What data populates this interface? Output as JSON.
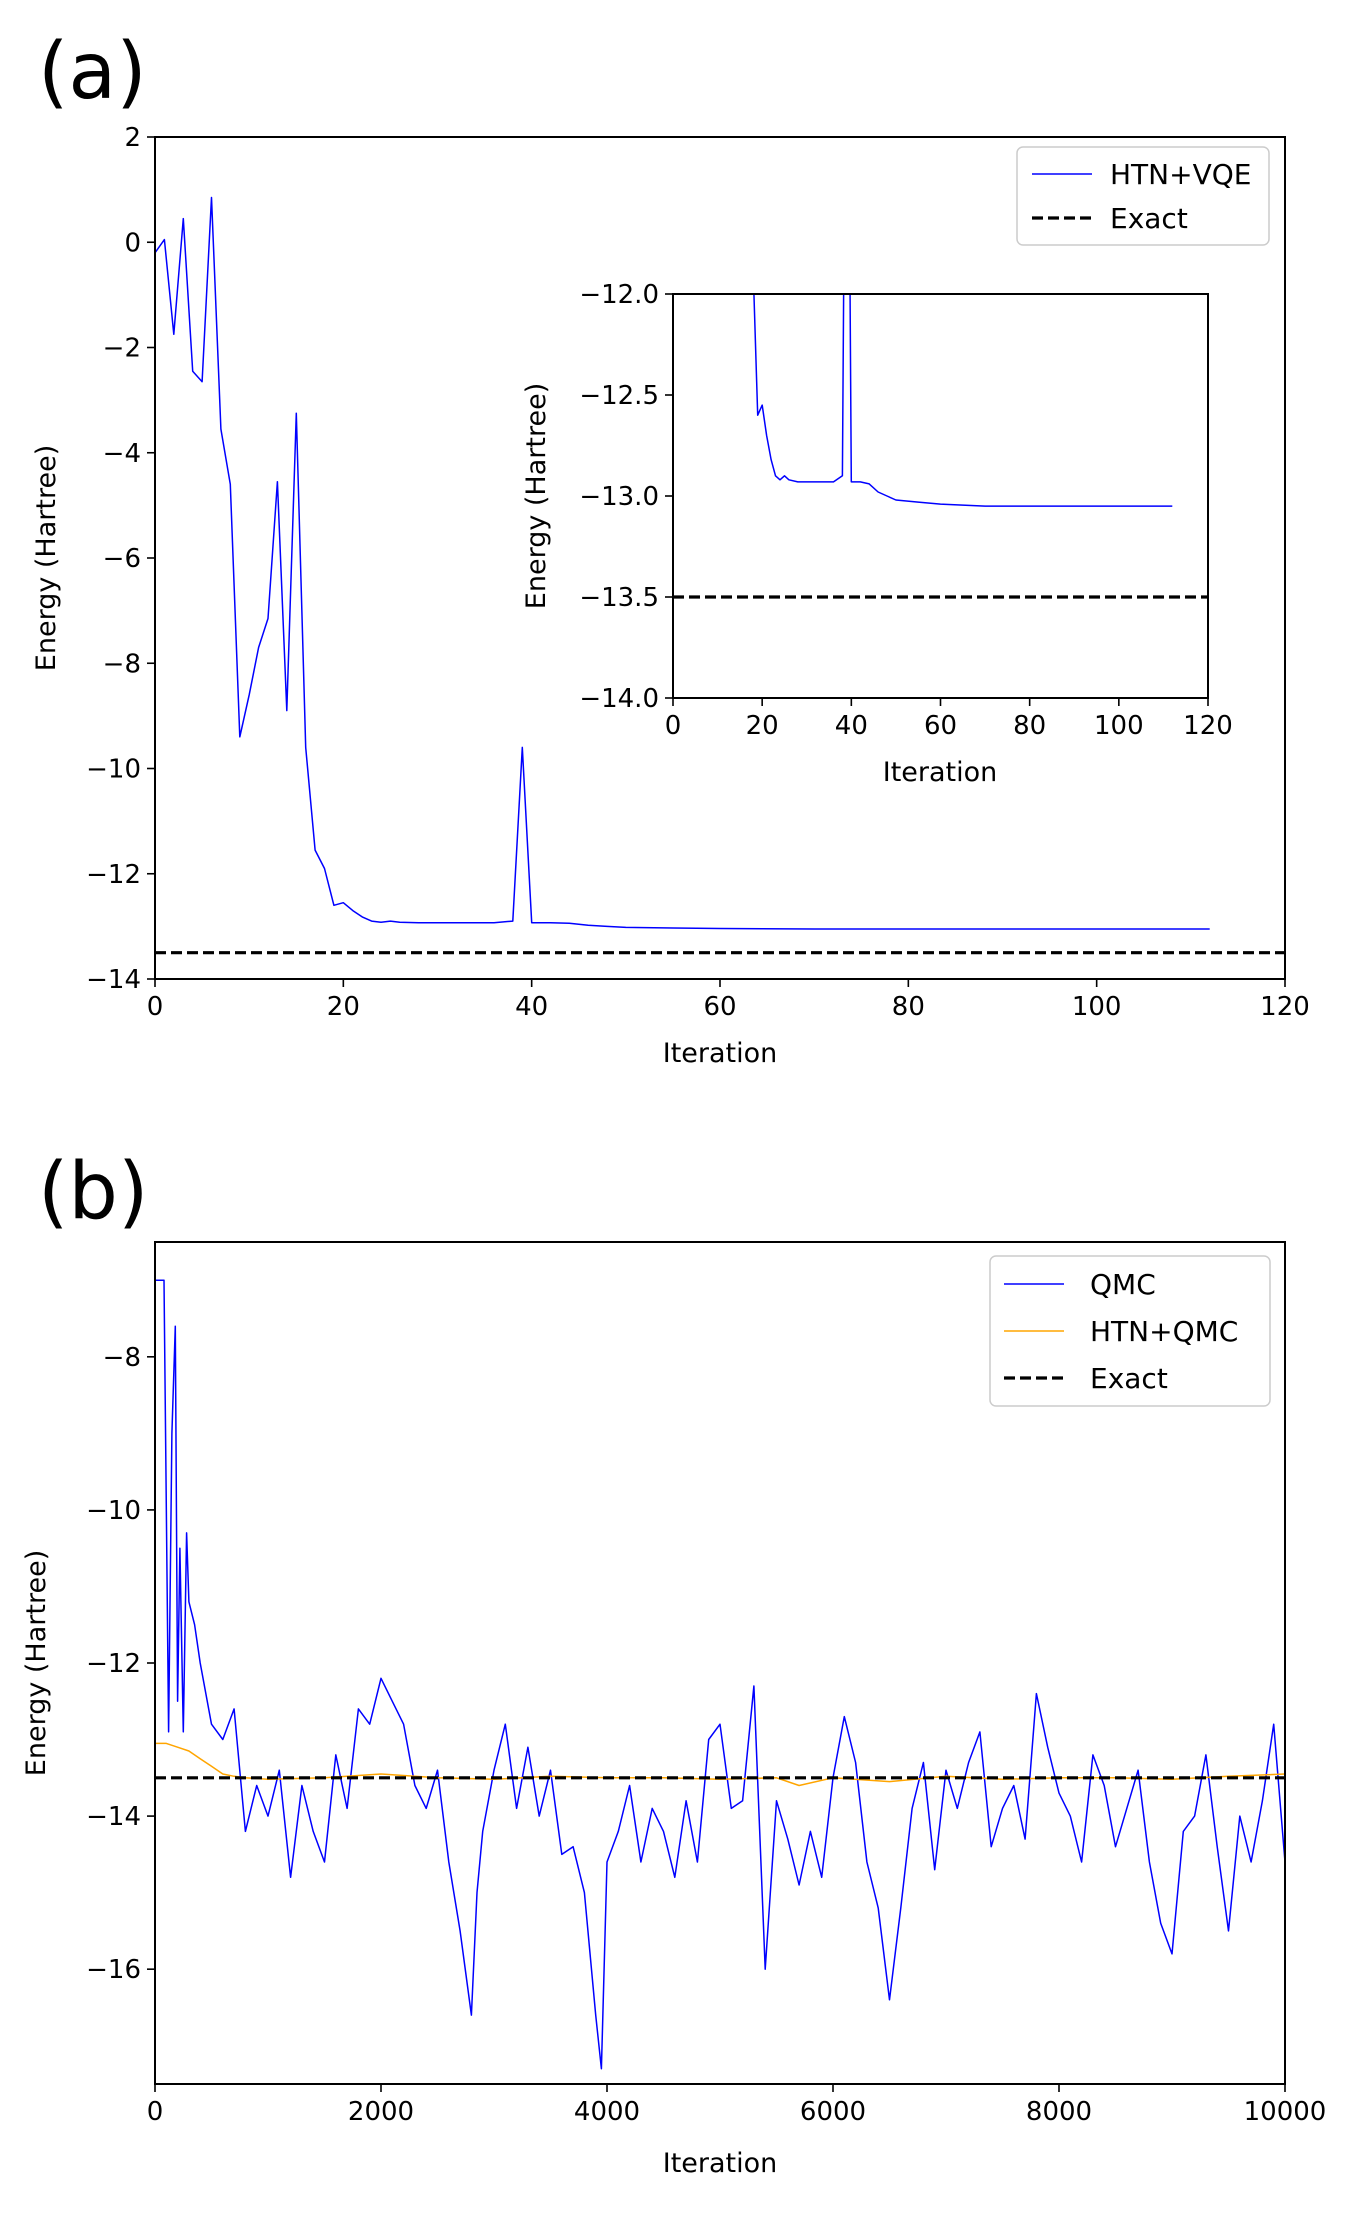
{
  "chart_data": [
    {
      "panel_label": "(a)",
      "type": "line",
      "xlabel": "Iteration",
      "ylabel": "Energy (Hartree)",
      "xlim": [
        0,
        120
      ],
      "ylim": [
        -14,
        2
      ],
      "xticks": [
        0,
        20,
        40,
        60,
        80,
        100,
        120
      ],
      "yticks": [
        2,
        0,
        -2,
        -4,
        -6,
        -8,
        -10,
        -12,
        -14
      ],
      "xtick_labels": [
        "0",
        "20",
        "40",
        "60",
        "80",
        "100",
        "120"
      ],
      "ytick_labels": [
        "2",
        "0",
        "−2",
        "−4",
        "−6",
        "−8",
        "−10",
        "−12",
        "−14"
      ],
      "legend": {
        "position": "top-right",
        "entries": [
          "HTN+VQE",
          "Exact"
        ]
      },
      "series": [
        {
          "name": "HTN+VQE",
          "color": "#0000ff",
          "x": [
            0,
            1,
            2,
            3,
            4,
            5,
            6,
            7,
            8,
            9,
            10,
            11,
            12,
            13,
            14,
            15,
            16,
            17,
            18,
            19,
            20,
            21,
            22,
            23,
            24,
            25,
            26,
            28,
            30,
            32,
            34,
            36,
            38,
            39,
            40,
            42,
            44,
            46,
            48,
            50,
            55,
            60,
            70,
            80,
            90,
            100,
            112
          ],
          "y": [
            -0.2,
            0.05,
            -1.75,
            0.45,
            -2.45,
            -2.65,
            0.85,
            -3.55,
            -4.6,
            -9.4,
            -8.6,
            -7.7,
            -7.15,
            -4.55,
            -8.9,
            -3.25,
            -9.6,
            -11.55,
            -11.9,
            -12.6,
            -12.55,
            -12.7,
            -12.82,
            -12.9,
            -12.92,
            -12.9,
            -12.92,
            -12.93,
            -12.93,
            -12.93,
            -12.93,
            -12.93,
            -12.9,
            -9.6,
            -12.93,
            -12.93,
            -12.94,
            -12.98,
            -13.0,
            -13.02,
            -13.03,
            -13.04,
            -13.05,
            -13.05,
            -13.05,
            -13.05,
            -13.05
          ]
        },
        {
          "name": "Exact",
          "color": "#000000",
          "style": "dashed",
          "value": -13.5
        }
      ],
      "inset": {
        "xlabel": "Iteration",
        "ylabel": "Energy (Hartree)",
        "xlim": [
          0,
          120
        ],
        "ylim": [
          -14.0,
          -12.0
        ],
        "xticks": [
          0,
          20,
          40,
          60,
          80,
          100,
          120
        ],
        "yticks": [
          -12.0,
          -12.5,
          -13.0,
          -13.5,
          -14.0
        ],
        "xtick_labels": [
          "0",
          "20",
          "40",
          "60",
          "80",
          "100",
          "120"
        ],
        "ytick_labels": [
          "−12.0",
          "−12.5",
          "−13.0",
          "−13.5",
          "−14.0"
        ]
      }
    },
    {
      "panel_label": "(b)",
      "type": "line",
      "xlabel": "Iteration",
      "ylabel": "Energy (Hartree)",
      "xlim": [
        0,
        10000
      ],
      "ylim": [
        -17.5,
        -6.5
      ],
      "xticks": [
        0,
        2000,
        4000,
        6000,
        8000,
        10000
      ],
      "yticks": [
        -8,
        -10,
        -12,
        -14,
        -16
      ],
      "xtick_labels": [
        "0",
        "2000",
        "4000",
        "6000",
        "8000",
        "10000"
      ],
      "ytick_labels": [
        "−8",
        "−10",
        "−12",
        "−14",
        "−16"
      ],
      "legend": {
        "position": "top-right",
        "entries": [
          "QMC",
          "HTN+QMC",
          "Exact"
        ]
      },
      "series": [
        {
          "name": "QMC",
          "color": "#0000ff",
          "x": [
            0,
            50,
            80,
            120,
            150,
            180,
            200,
            220,
            250,
            280,
            300,
            350,
            400,
            500,
            600,
            700,
            800,
            900,
            1000,
            1100,
            1200,
            1300,
            1400,
            1500,
            1600,
            1700,
            1800,
            1900,
            2000,
            2100,
            2200,
            2300,
            2400,
            2500,
            2600,
            2700,
            2800,
            2850,
            2900,
            3000,
            3100,
            3200,
            3300,
            3400,
            3500,
            3600,
            3700,
            3800,
            3900,
            3950,
            4000,
            4100,
            4200,
            4300,
            4400,
            4500,
            4600,
            4700,
            4800,
            4900,
            5000,
            5100,
            5200,
            5300,
            5400,
            5500,
            5600,
            5700,
            5800,
            5900,
            6000,
            6100,
            6200,
            6300,
            6400,
            6500,
            6600,
            6700,
            6800,
            6900,
            7000,
            7100,
            7200,
            7300,
            7400,
            7500,
            7600,
            7700,
            7800,
            7900,
            8000,
            8100,
            8200,
            8300,
            8400,
            8500,
            8600,
            8700,
            8800,
            8900,
            9000,
            9100,
            9200,
            9300,
            9400,
            9500,
            9600,
            9700,
            9800,
            9900,
            10000
          ],
          "y": [
            -7.0,
            -7.0,
            -7.0,
            -12.9,
            -9.0,
            -7.6,
            -12.5,
            -10.5,
            -12.9,
            -10.3,
            -11.2,
            -11.5,
            -12.0,
            -12.8,
            -13.0,
            -12.6,
            -14.2,
            -13.6,
            -14.0,
            -13.4,
            -14.8,
            -13.6,
            -14.2,
            -14.6,
            -13.2,
            -13.9,
            -12.6,
            -12.8,
            -12.2,
            -12.5,
            -12.8,
            -13.6,
            -13.9,
            -13.4,
            -14.6,
            -15.5,
            -16.6,
            -15.0,
            -14.2,
            -13.4,
            -12.8,
            -13.9,
            -13.1,
            -14.0,
            -13.4,
            -14.5,
            -14.4,
            -15.0,
            -16.6,
            -17.3,
            -14.6,
            -14.2,
            -13.6,
            -14.6,
            -13.9,
            -14.2,
            -14.8,
            -13.8,
            -14.6,
            -13.0,
            -12.8,
            -13.9,
            -13.8,
            -12.3,
            -16.0,
            -13.8,
            -14.3,
            -14.9,
            -14.2,
            -14.8,
            -13.5,
            -12.7,
            -13.3,
            -14.6,
            -15.2,
            -16.4,
            -15.2,
            -13.9,
            -13.3,
            -14.7,
            -13.4,
            -13.9,
            -13.3,
            -12.9,
            -14.4,
            -13.9,
            -13.6,
            -14.3,
            -12.4,
            -13.1,
            -13.7,
            -14.0,
            -14.6,
            -13.2,
            -13.6,
            -14.4,
            -13.9,
            -13.4,
            -14.6,
            -15.4,
            -15.8,
            -14.2,
            -14.0,
            -13.2,
            -14.4,
            -15.5,
            -14.0,
            -14.6,
            -13.8,
            -12.8,
            -14.6
          ]
        },
        {
          "name": "HTN+QMC",
          "color": "#ffa500",
          "x": [
            0,
            100,
            200,
            300,
            400,
            500,
            600,
            700,
            800,
            1000,
            1500,
            2000,
            2500,
            3000,
            3500,
            4000,
            4500,
            5000,
            5500,
            5700,
            6000,
            6500,
            7000,
            7500,
            8000,
            8500,
            9000,
            9500,
            10000
          ],
          "y": [
            -13.05,
            -13.05,
            -13.1,
            -13.15,
            -13.25,
            -13.35,
            -13.45,
            -13.48,
            -13.5,
            -13.52,
            -13.5,
            -13.45,
            -13.5,
            -13.52,
            -13.48,
            -13.5,
            -13.5,
            -13.52,
            -13.5,
            -13.6,
            -13.5,
            -13.55,
            -13.48,
            -13.52,
            -13.5,
            -13.5,
            -13.52,
            -13.48,
            -13.45
          ]
        },
        {
          "name": "Exact",
          "color": "#000000",
          "style": "dashed",
          "value": -13.5
        }
      ]
    }
  ]
}
